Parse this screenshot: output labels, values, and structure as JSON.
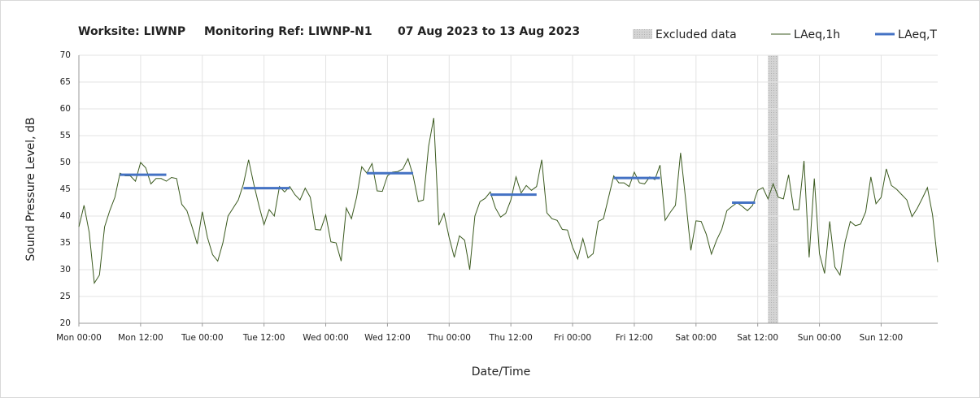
{
  "chart_data": {
    "type": "line",
    "title_parts": [
      "Worksite: LIWNP",
      "Monitoring Ref: LIWNP-N1",
      "07 Aug 2023 to 13 Aug 2023"
    ],
    "x_label": "Date/Time",
    "y_label": "Sound Pressure Level, dB",
    "x": [
      0,
      1,
      2,
      3,
      4,
      5,
      6,
      7,
      8,
      9,
      10,
      11,
      12,
      13,
      14,
      15,
      16,
      17,
      18,
      19,
      20,
      21,
      22,
      23,
      24,
      25,
      26,
      27,
      28,
      29,
      30,
      31,
      32,
      33,
      34,
      35,
      36,
      37,
      38,
      39,
      40,
      41,
      42,
      43,
      44,
      45,
      46,
      47,
      48,
      49,
      50,
      51,
      52,
      53,
      54,
      55,
      56,
      57,
      58,
      59,
      60,
      61,
      62,
      63,
      64,
      65,
      66,
      67,
      68,
      69,
      70,
      71,
      72,
      73,
      74,
      75,
      76,
      77,
      78,
      79,
      80,
      81,
      82,
      83,
      84,
      85,
      86,
      87,
      88,
      89,
      90,
      91,
      92,
      93,
      94,
      95,
      96,
      97,
      98,
      99,
      100,
      101,
      102,
      103,
      104,
      105,
      106,
      107,
      108,
      109,
      110,
      111,
      112,
      113,
      114,
      115,
      116,
      117,
      118,
      119,
      120,
      121,
      122,
      123,
      124,
      125,
      126,
      127,
      128,
      129,
      130,
      131,
      132,
      133,
      134,
      135,
      136,
      137,
      138,
      139,
      140,
      141,
      142,
      143,
      144,
      145,
      146,
      147,
      148,
      149,
      150,
      151,
      152,
      153,
      154,
      155,
      156,
      157,
      158,
      159,
      160,
      161,
      162,
      163,
      164,
      165,
      166,
      167
    ],
    "series": [
      {
        "name": "LAeq,1h",
        "color": "#3b5a1f",
        "values": [
          38,
          42,
          37,
          27.5,
          29,
          38,
          41,
          43.5,
          48,
          47.5,
          47.5,
          46.5,
          50,
          49,
          46,
          47,
          47,
          46.5,
          47.2,
          47,
          42.2,
          41,
          38,
          34.8,
          40.8,
          36,
          32.8,
          31.6,
          35,
          40,
          41.5,
          43,
          46,
          50.5,
          46,
          42,
          38.4,
          41.2,
          40,
          45.5,
          44.5,
          45.5,
          44,
          43,
          45.2,
          43.5,
          37.5,
          37.4,
          40.2,
          35.2,
          35,
          31.6,
          41.5,
          39.5,
          43.5,
          49.2,
          48,
          49.8,
          44.7,
          44.6,
          47.5,
          48.2,
          48.3,
          48.8,
          50.7,
          47.5,
          42.7,
          43,
          53,
          58.3,
          38.3,
          40.5,
          36,
          32.3,
          36.3,
          35.5,
          30,
          40,
          42.7,
          43.3,
          44.5,
          41.5,
          39.8,
          40.5,
          43,
          47.3,
          44.3,
          45.7,
          44.8,
          45.5,
          50.5,
          40.6,
          39.5,
          39.2,
          37.5,
          37.4,
          34.2,
          32,
          35.8,
          32.2,
          33,
          39,
          39.5,
          43.5,
          47.5,
          46.2,
          46.2,
          45.5,
          48.2,
          46.2,
          46,
          47.3,
          46.8,
          49.5,
          39.2,
          40.7,
          42,
          51.8,
          43,
          33.6,
          39.1,
          39,
          36.6,
          32.9,
          35.5,
          37.5,
          41,
          41.8,
          42.5,
          41.8,
          41,
          42,
          44.8,
          45.3,
          43.2,
          46,
          43.5,
          43.2,
          47.7,
          41.2,
          41.2,
          50.3,
          32.3,
          47,
          33,
          29.3,
          39,
          30.5,
          29,
          35.2,
          39,
          38.2,
          38.5,
          40.8,
          47.3,
          42.3,
          43.5,
          48.8,
          45.7,
          45,
          44,
          43,
          39.9,
          41.4,
          43.3,
          45.3,
          40.2,
          31.4
        ]
      }
    ],
    "segments": {
      "name": "LAeq,T",
      "color": "#4472c4",
      "items": [
        {
          "x0": 8,
          "x1": 17,
          "value": 47.7
        },
        {
          "x0": 32,
          "x1": 41,
          "value": 45.2
        },
        {
          "x0": 56,
          "x1": 65,
          "value": 48
        },
        {
          "x0": 80,
          "x1": 89,
          "value": 44
        },
        {
          "x0": 104,
          "x1": 113,
          "value": 47.1
        },
        {
          "x0": 127,
          "x1": 131.5,
          "value": 42.5
        }
      ]
    },
    "excluded": {
      "name": "Excluded data",
      "color": "#c8c8c8",
      "x0": 134,
      "x1": 136
    },
    "xlim": [
      0,
      167
    ],
    "xticks": [
      {
        "value": 0,
        "label": "Mon 00:00"
      },
      {
        "value": 12,
        "label": "Mon 12:00"
      },
      {
        "value": 24,
        "label": "Tue 00:00"
      },
      {
        "value": 36,
        "label": "Tue 12:00"
      },
      {
        "value": 48,
        "label": "Wed 00:00"
      },
      {
        "value": 60,
        "label": "Wed 12:00"
      },
      {
        "value": 72,
        "label": "Thu 00:00"
      },
      {
        "value": 84,
        "label": "Thu 12:00"
      },
      {
        "value": 96,
        "label": "Fri 00:00"
      },
      {
        "value": 108,
        "label": "Fri 12:00"
      },
      {
        "value": 120,
        "label": "Sat 00:00"
      },
      {
        "value": 132,
        "label": "Sat 12:00"
      },
      {
        "value": 144,
        "label": "Sun 00:00"
      },
      {
        "value": 156,
        "label": "Sun 12:00"
      }
    ],
    "ylim": [
      20,
      70
    ],
    "yticks": [
      20,
      25,
      30,
      35,
      40,
      45,
      50,
      55,
      60,
      65,
      70
    ],
    "grid": true
  }
}
